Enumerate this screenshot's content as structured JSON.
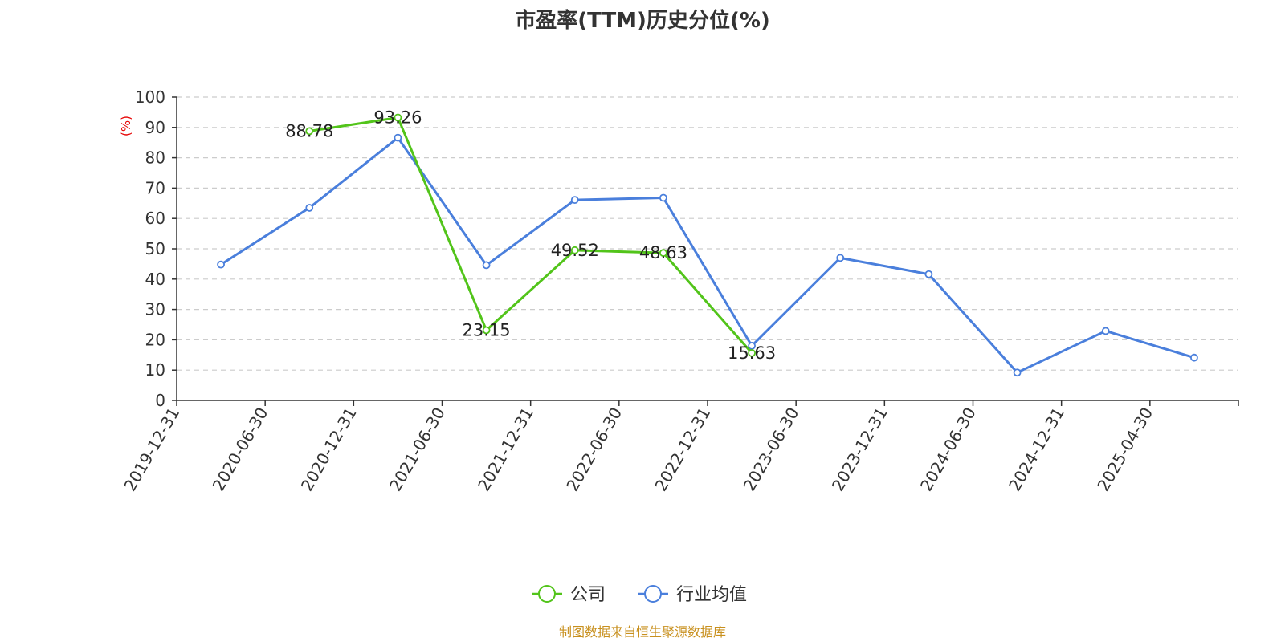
{
  "chart_data": {
    "type": "line",
    "title": "市盈率(TTM)历史分位(%)",
    "ylabel": "(%)",
    "ylabel_color": "#e60000",
    "ylim": [
      0,
      100
    ],
    "yticks": [
      0,
      10,
      20,
      30,
      40,
      50,
      60,
      70,
      80,
      90,
      100
    ],
    "grid": "horizontal-dashed",
    "legend_position": "bottom-center",
    "categories": [
      "2019-12-31",
      "2020-06-30",
      "2020-12-31",
      "2021-06-30",
      "2021-12-31",
      "2022-06-30",
      "2022-12-31",
      "2023-06-30",
      "2023-12-31",
      "2024-06-30",
      "2024-12-31",
      "2025-04-30"
    ],
    "series": [
      {
        "name": "公司",
        "color": "#52c41a",
        "values": [
          null,
          88.78,
          93.26,
          23.15,
          49.52,
          48.63,
          15.63,
          null,
          null,
          null,
          null,
          null
        ],
        "labels": [
          "",
          "88.78",
          "93.26",
          "23.15",
          "49.52",
          "48.63",
          "15.63",
          "",
          "",
          "",
          "",
          ""
        ]
      },
      {
        "name": "行业均值",
        "color": "#4a7fdc",
        "values": [
          44.8,
          63.5,
          86.6,
          44.6,
          66.1,
          66.8,
          18.0,
          47.0,
          41.6,
          9.2,
          22.9,
          14.1
        ]
      }
    ],
    "source": "制图数据来自恒生聚源数据库",
    "source_color": "#c8901e"
  }
}
